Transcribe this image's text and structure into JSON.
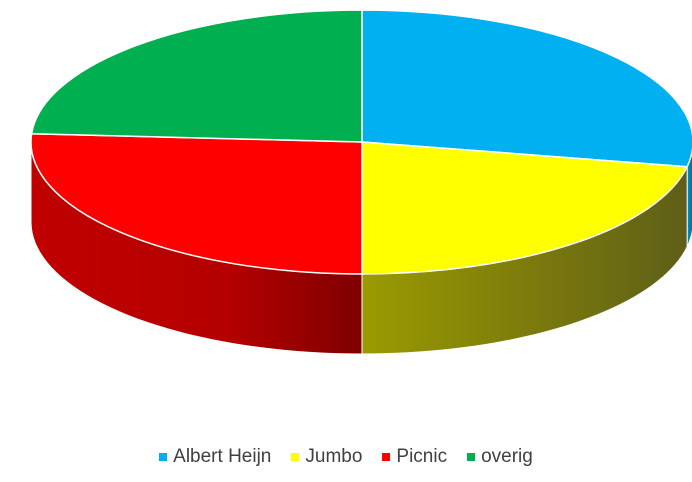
{
  "chart_data": {
    "type": "pie",
    "style": "3d",
    "title": "",
    "categories": [
      "Albert Heijn",
      "Jumbo",
      "Picnic",
      "overig"
    ],
    "values": [
      28,
      22,
      26,
      24
    ],
    "colors": [
      "#00b0f0",
      "#ffff00",
      "#ff0000",
      "#00b050"
    ],
    "side_colors": [
      "#0086b8",
      "#807f00",
      "#a00000",
      "#00763a"
    ],
    "legend_position": "bottom"
  }
}
